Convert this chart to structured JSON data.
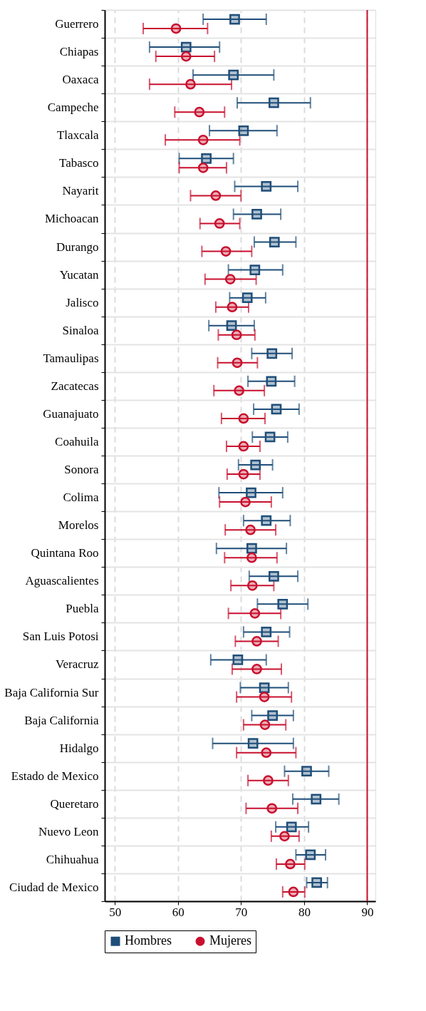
{
  "chart_data": {
    "type": "scatter",
    "orientation": "horizontal",
    "categories": [
      "Guerrero",
      "Chiapas",
      "Oaxaca",
      "Campeche",
      "Tlaxcala",
      "Tabasco",
      "Nayarit",
      "Michoacan",
      "Durango",
      "Yucatan",
      "Jalisco",
      "Sinaloa",
      "Tamaulipas",
      "Zacatecas",
      "Guanajuato",
      "Coahuila",
      "Sonora",
      "Colima",
      "Morelos",
      "Quintana Roo",
      "Aguascalientes",
      "Puebla",
      "San Luis Potosi",
      "Veracruz",
      "Baja California Sur",
      "Baja California",
      "Hidalgo",
      "Estado de Mexico",
      "Queretaro",
      "Nuevo Leon",
      "Chihuahua",
      "Ciudad de Mexico"
    ],
    "series": [
      {
        "name": "Hombres",
        "color": "#1f4e79",
        "marker": "square",
        "values": [
          69,
          61.3,
          68.8,
          75.2,
          70.4,
          64.5,
          74,
          72.5,
          75.3,
          72.2,
          71,
          68.5,
          74.9,
          74.8,
          75.6,
          74.6,
          72.3,
          71.6,
          74,
          71.7,
          75.2,
          76.6,
          74,
          69.5,
          73.7,
          75,
          71.9,
          80.4,
          81.9,
          78,
          81,
          82
        ],
        "errors": [
          [
            64,
            74
          ],
          [
            55.5,
            66.6
          ],
          [
            62.4,
            75.2
          ],
          [
            69.4,
            81
          ],
          [
            65,
            75.7
          ],
          [
            60.2,
            68.8
          ],
          [
            69,
            79
          ],
          [
            68.8,
            76.3
          ],
          [
            72.1,
            78.7
          ],
          [
            68,
            76.6
          ],
          [
            68.2,
            73.9
          ],
          [
            64.9,
            72.1
          ],
          [
            71.7,
            78.1
          ],
          [
            71.1,
            78.5
          ],
          [
            72,
            79.2
          ],
          [
            71.8,
            77.4
          ],
          [
            69.6,
            75
          ],
          [
            66.5,
            76.6
          ],
          [
            70.4,
            77.8
          ],
          [
            66.1,
            77.2
          ],
          [
            71.3,
            79
          ],
          [
            72.6,
            80.6
          ],
          [
            70.4,
            77.7
          ],
          [
            65.2,
            74
          ],
          [
            69.9,
            77.5
          ],
          [
            71.7,
            78.3
          ],
          [
            65.5,
            78.3
          ],
          [
            76.9,
            83.9
          ],
          [
            78.2,
            85.5
          ],
          [
            75.5,
            80.7
          ],
          [
            78.7,
            83.4
          ],
          [
            80.4,
            83.7
          ]
        ]
      },
      {
        "name": "Mujeres",
        "color": "#c8102e",
        "marker": "circle",
        "values": [
          59.7,
          61.3,
          62,
          63.4,
          64,
          64,
          66,
          66.6,
          67.6,
          68.3,
          68.6,
          69.3,
          69.4,
          69.7,
          70.4,
          70.4,
          70.4,
          70.7,
          71.5,
          71.7,
          71.8,
          72.2,
          72.5,
          72.5,
          73.7,
          73.8,
          74,
          74.3,
          74.9,
          76.9,
          77.8,
          78.3
        ],
        "errors": [
          [
            54.5,
            64.7
          ],
          [
            56.5,
            65.8
          ],
          [
            55.5,
            68.5
          ],
          [
            59.5,
            67.4
          ],
          [
            58,
            69.8
          ],
          [
            60.2,
            67.7
          ],
          [
            62,
            70
          ],
          [
            63.5,
            69.8
          ],
          [
            63.8,
            71.7
          ],
          [
            64.3,
            72.4
          ],
          [
            66,
            71.2
          ],
          [
            66.4,
            72.2
          ],
          [
            66.3,
            72.6
          ],
          [
            65.7,
            73.7
          ],
          [
            66.9,
            73.8
          ],
          [
            67.7,
            73
          ],
          [
            67.8,
            73
          ],
          [
            66.6,
            74.8
          ],
          [
            67.5,
            75.5
          ],
          [
            67.4,
            75.7
          ],
          [
            68.4,
            75.2
          ],
          [
            68,
            76.3
          ],
          [
            69.1,
            75.9
          ],
          [
            68.6,
            76.4
          ],
          [
            69.3,
            78
          ],
          [
            70.4,
            77.1
          ],
          [
            69.3,
            78.7
          ],
          [
            71.1,
            77.5
          ],
          [
            70.8,
            79
          ],
          [
            74.8,
            79.2
          ],
          [
            75.6,
            80.1
          ],
          [
            76.6,
            80.1
          ]
        ]
      }
    ],
    "xlim": [
      48.4,
      91.3
    ],
    "xticks": [
      50,
      60,
      70,
      80,
      90
    ],
    "ref_lines": [
      {
        "axis": "x",
        "value": 90,
        "color": "#c8102e"
      }
    ],
    "grid": true,
    "legend": "bottom"
  }
}
